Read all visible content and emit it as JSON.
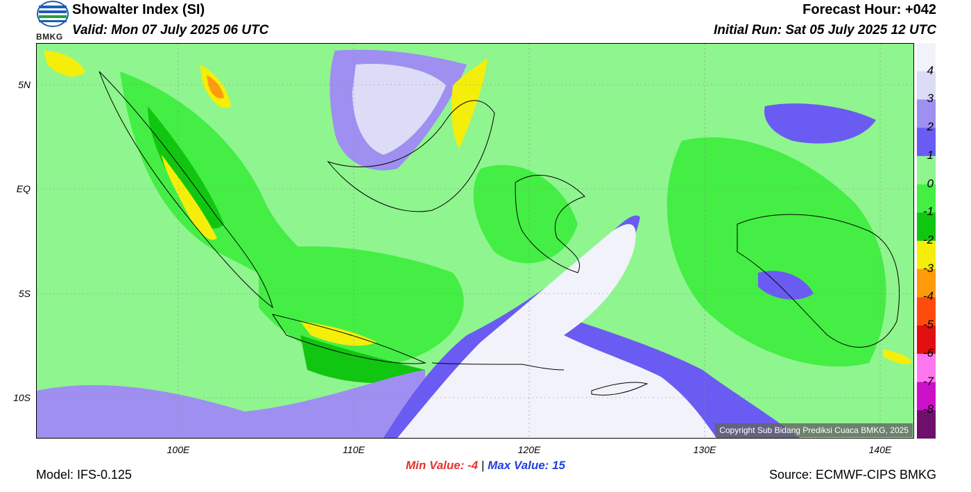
{
  "header": {
    "title": "Showalter Index (SI)",
    "valid": "Valid: Mon 07 July 2025 06 UTC",
    "forecast_hour": "Forecast Hour: +042",
    "initial_run": "Initial Run: Sat 05 July 2025 12 UTC",
    "logo_text": "BMKG"
  },
  "axes": {
    "lat_labels": [
      "5N",
      "EQ",
      "5S",
      "10S"
    ],
    "lon_labels": [
      "100E",
      "110E",
      "120E",
      "130E",
      "140E"
    ]
  },
  "legend": {
    "labels": [
      "4",
      "3",
      "2",
      "1",
      "0",
      "-1",
      "-2",
      "-3",
      "-4",
      "-5",
      "-6",
      "-7",
      "-8"
    ],
    "colors": [
      "#f2f2fb",
      "#dcdcf6",
      "#9f8ff0",
      "#6a5cf2",
      "#8ff58f",
      "#44ee44",
      "#11c611",
      "#f5ee0a",
      "#ff9a0c",
      "#ff4c0c",
      "#e01010",
      "#ff77ee",
      "#cc10c8",
      "#6e0f6e"
    ]
  },
  "stats": {
    "min_label": "Min Value:",
    "min_value": "-4",
    "separator": "|",
    "max_label": "Max Value:",
    "max_value": "15"
  },
  "footer": {
    "model": "Model: IFS-0.125",
    "source": "Source: ECMWF-CIPS BMKG",
    "copyright": "Copyright Sub Bidang Prediksi Cuaca BMKG, 2025"
  }
}
